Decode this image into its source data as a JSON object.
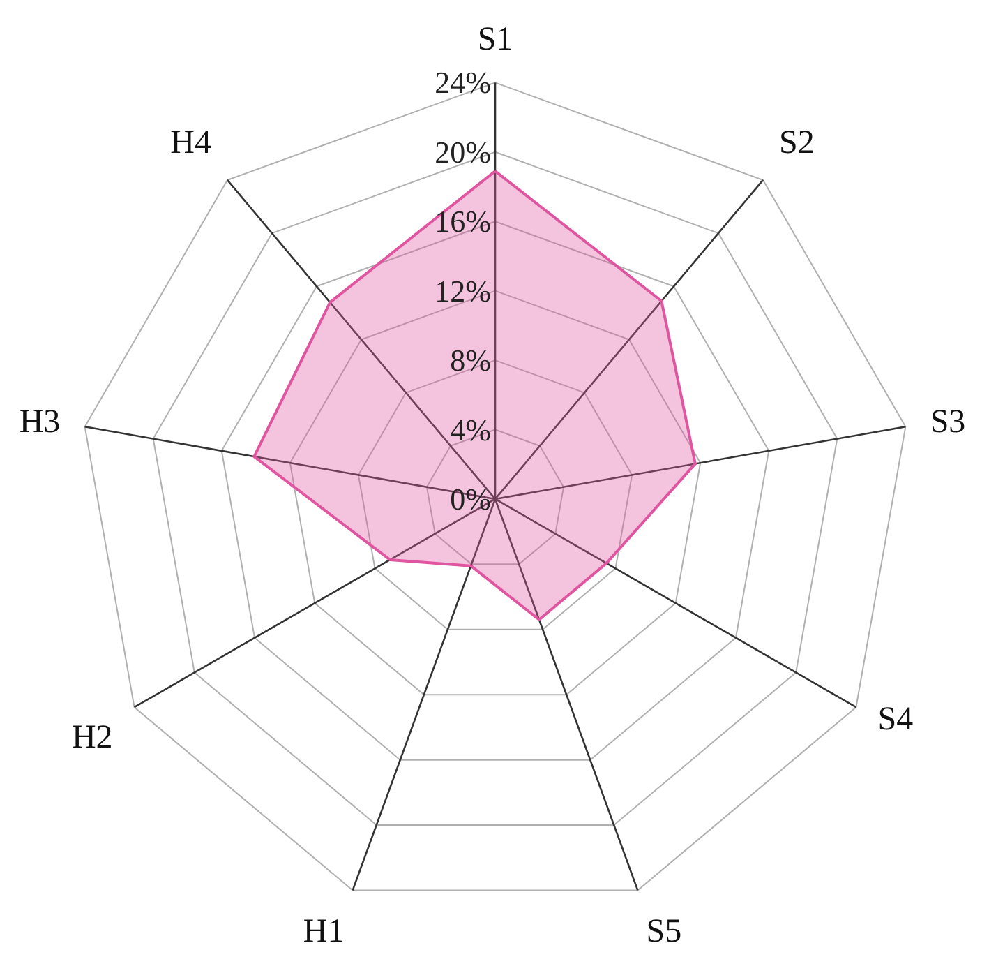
{
  "chart_data": {
    "type": "radar",
    "categories": [
      "S1",
      "S2",
      "S3",
      "S4",
      "S5",
      "H1",
      "H2",
      "H3",
      "H4"
    ],
    "series": [
      {
        "color": "#e055a0",
        "values": [
          18.9,
          14.9,
          11.7,
          7.4,
          7.4,
          4.1,
          7.0,
          14.1,
          14.8
        ]
      }
    ],
    "ylim": [
      0,
      24
    ],
    "yticks": [
      {
        "value": 0,
        "label": "0%"
      },
      {
        "value": 4,
        "label": "4%"
      },
      {
        "value": 8,
        "label": "8%"
      },
      {
        "value": 12,
        "label": "12%"
      },
      {
        "value": 16,
        "label": "16%"
      },
      {
        "value": 20,
        "label": "20%"
      },
      {
        "value": 24,
        "label": "24%"
      }
    ],
    "grid": true
  }
}
